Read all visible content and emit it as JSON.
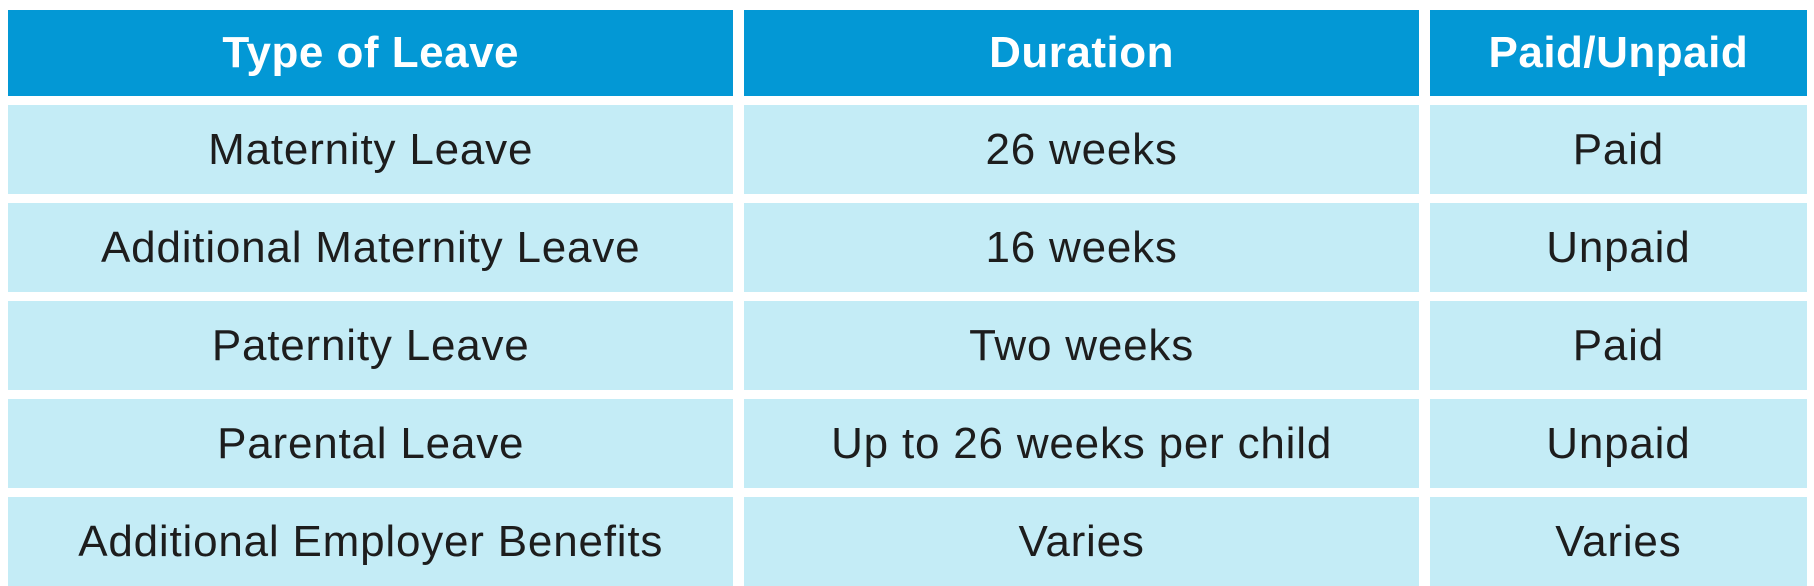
{
  "chart_data": {
    "type": "table",
    "title": "",
    "columns": [
      "Type of Leave",
      "Duration",
      "Paid/Unpaid"
    ],
    "rows": [
      [
        "Maternity Leave",
        "26 weeks",
        "Paid"
      ],
      [
        "Additional Maternity Leave",
        "16 weeks",
        "Unpaid"
      ],
      [
        "Paternity Leave",
        "Two weeks",
        "Paid"
      ],
      [
        "Parental Leave",
        "Up to 26 weeks per child",
        "Unpaid"
      ],
      [
        "Additional Employer Benefits",
        "Varies",
        "Varies"
      ]
    ]
  },
  "colors": {
    "canvas_bg": "#FFFFFF",
    "header_bg": "#0398D5",
    "header_text": "#FFFFFF",
    "row_bg": "#C4ECF6",
    "row_text": "#1D1D1D"
  }
}
